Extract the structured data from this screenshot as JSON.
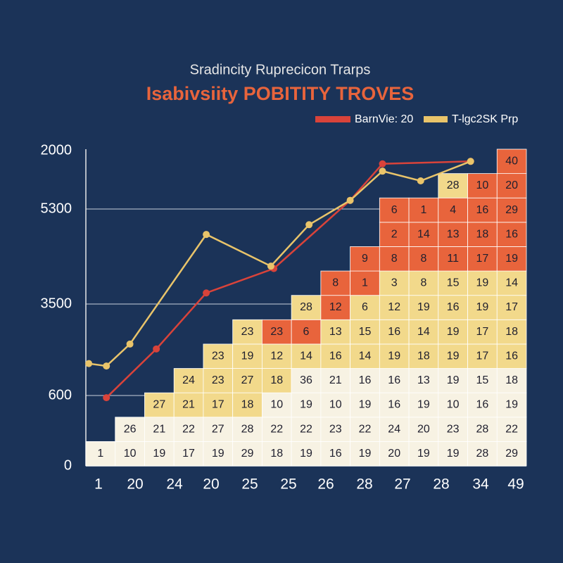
{
  "chart_data": [
    {
      "type": "heatmap",
      "title": "Sradincity Ruprecicon Trarps",
      "subtitle": "Isabivsiity POBITITY TROVES",
      "x_labels": [
        "1",
        "20",
        "24",
        "20",
        "25",
        "25",
        "26",
        "28",
        "27",
        "28",
        "34",
        "49"
      ],
      "y_labels": [
        "2000",
        "5300",
        "3500",
        "600",
        "0"
      ],
      "xlim": [
        0,
        15
      ],
      "ylim": [
        0,
        13
      ],
      "rows": [
        {
          "values": [
            1,
            10,
            19,
            17,
            19,
            29,
            18,
            19,
            16,
            19,
            20,
            19,
            19,
            28,
            29
          ],
          "colors": [
            "#f7f2e3",
            "#f7f2e3",
            "#f7f2e3",
            "#f7f2e3",
            "#f7f2e3",
            "#f7f2e3",
            "#f7f2e3",
            "#f7f2e3",
            "#f7f2e3",
            "#f7f2e3",
            "#f7f2e3",
            "#f7f2e3",
            "#f7f2e3",
            "#f7f2e3",
            "#f7f2e3"
          ]
        },
        {
          "values": [
            null,
            26,
            21,
            22,
            27,
            28,
            22,
            22,
            23,
            22,
            24,
            20,
            23,
            28,
            22
          ],
          "colors": [
            null,
            "#f7f2e3",
            "#f7f2e3",
            "#f7f2e3",
            "#f7f2e3",
            "#f7f2e3",
            "#f7f2e3",
            "#f7f2e3",
            "#f7f2e3",
            "#f7f2e3",
            "#f7f2e3",
            "#f7f2e3",
            "#f7f2e3",
            "#f7f2e3",
            "#f7f2e3"
          ]
        },
        {
          "values": [
            null,
            null,
            27,
            21,
            17,
            18,
            10,
            19,
            10,
            19,
            16,
            19,
            10,
            16,
            19
          ],
          "colors": [
            null,
            null,
            "#f2d98b",
            "#f2d98b",
            "#f2d98b",
            "#f2d98b",
            "#f7f2e3",
            "#f7f2e3",
            "#f7f2e3",
            "#f7f2e3",
            "#f7f2e3",
            "#f7f2e3",
            "#f7f2e3",
            "#f7f2e3",
            "#f7f2e3"
          ]
        },
        {
          "values": [
            null,
            null,
            null,
            24,
            23,
            27,
            18,
            36,
            21,
            16,
            16,
            13,
            19,
            15,
            18
          ],
          "colors": [
            null,
            null,
            null,
            "#f2d98b",
            "#f2d98b",
            "#f2d98b",
            "#f2d98b",
            "#f7f2e3",
            "#f7f2e3",
            "#f7f2e3",
            "#f7f2e3",
            "#f7f2e3",
            "#f7f2e3",
            "#f7f2e3",
            "#f7f2e3"
          ]
        },
        {
          "values": [
            null,
            null,
            null,
            null,
            23,
            19,
            12,
            14,
            16,
            14,
            19,
            18,
            19,
            17,
            16
          ],
          "colors": [
            null,
            null,
            null,
            null,
            "#f2d98b",
            "#f2d98b",
            "#f2d98b",
            "#f2d98b",
            "#f2d98b",
            "#f2d98b",
            "#f2d98b",
            "#f2d98b",
            "#f2d98b",
            "#f2d98b",
            "#f2d98b"
          ]
        },
        {
          "values": [
            null,
            null,
            null,
            null,
            null,
            23,
            23,
            6,
            13,
            15,
            16,
            14,
            19,
            17,
            18
          ],
          "colors": [
            null,
            null,
            null,
            null,
            null,
            "#f2d98b",
            "#e8643c",
            "#e8643c",
            "#f2d98b",
            "#f2d98b",
            "#f2d98b",
            "#f2d98b",
            "#f2d98b",
            "#f2d98b",
            "#f2d98b"
          ]
        },
        {
          "values": [
            null,
            null,
            null,
            null,
            null,
            null,
            null,
            28,
            12,
            6,
            12,
            19,
            16,
            19,
            17
          ],
          "colors": [
            null,
            null,
            null,
            null,
            null,
            null,
            null,
            "#f2d98b",
            "#e8643c",
            "#f2d98b",
            "#f2d98b",
            "#f2d98b",
            "#f2d98b",
            "#f2d98b",
            "#f2d98b"
          ]
        },
        {
          "values": [
            null,
            null,
            null,
            null,
            null,
            null,
            null,
            null,
            8,
            1,
            3,
            8,
            15,
            19,
            14
          ],
          "colors": [
            null,
            null,
            null,
            null,
            null,
            null,
            null,
            null,
            "#e8643c",
            "#e8643c",
            "#f2d98b",
            "#f2d98b",
            "#f2d98b",
            "#f2d98b",
            "#f2d98b"
          ]
        },
        {
          "values": [
            null,
            null,
            null,
            null,
            null,
            null,
            null,
            null,
            null,
            9,
            8,
            8,
            11,
            17,
            19
          ],
          "colors": [
            null,
            null,
            null,
            null,
            null,
            null,
            null,
            null,
            null,
            "#e8643c",
            "#e8643c",
            "#e8643c",
            "#e8643c",
            "#e8643c",
            "#e8643c"
          ]
        },
        {
          "values": [
            null,
            null,
            null,
            null,
            null,
            null,
            null,
            null,
            null,
            null,
            2,
            14,
            13,
            18,
            16
          ],
          "colors": [
            null,
            null,
            null,
            null,
            null,
            null,
            null,
            null,
            null,
            null,
            "#e8643c",
            "#e8643c",
            "#e8643c",
            "#e8643c",
            "#e8643c"
          ]
        },
        {
          "values": [
            null,
            null,
            null,
            null,
            null,
            null,
            null,
            null,
            null,
            null,
            6,
            1,
            4,
            16,
            29
          ],
          "colors": [
            null,
            null,
            null,
            null,
            null,
            null,
            null,
            null,
            null,
            null,
            "#e8643c",
            "#e8643c",
            "#e8643c",
            "#e8643c",
            "#e8643c"
          ]
        },
        {
          "values": [
            null,
            null,
            null,
            null,
            null,
            null,
            null,
            null,
            null,
            null,
            null,
            null,
            28,
            10,
            20
          ],
          "colors": [
            null,
            null,
            null,
            null,
            null,
            null,
            null,
            null,
            null,
            null,
            null,
            null,
            "#f2d98b",
            "#e8643c",
            "#e8643c"
          ]
        },
        {
          "values": [
            null,
            null,
            null,
            null,
            null,
            null,
            null,
            null,
            null,
            null,
            null,
            null,
            null,
            null,
            40
          ],
          "colors": [
            null,
            null,
            null,
            null,
            null,
            null,
            null,
            null,
            null,
            null,
            null,
            null,
            null,
            null,
            "#e8643c"
          ]
        }
      ]
    },
    {
      "type": "line",
      "xlim": [
        0,
        15
      ],
      "ylim": [
        0,
        13
      ],
      "series": [
        {
          "name": "BarnVie: 20",
          "color": "#d9433a",
          "x": [
            0.7,
            2.4,
            4.1,
            6.4,
            9.0,
            10.1,
            13.1
          ],
          "values": [
            2.8,
            4.8,
            7.1,
            8.1,
            10.9,
            12.4,
            12.5
          ]
        },
        {
          "name": "T-lgc2SK Prp",
          "color": "#e9c46a",
          "x": [
            0.1,
            0.7,
            1.5,
            4.1,
            6.3,
            7.6,
            9.0,
            10.1,
            11.4,
            13.1
          ],
          "values": [
            4.2,
            4.1,
            5.0,
            9.5,
            8.2,
            9.9,
            10.9,
            12.1,
            11.7,
            12.5
          ]
        }
      ]
    }
  ]
}
